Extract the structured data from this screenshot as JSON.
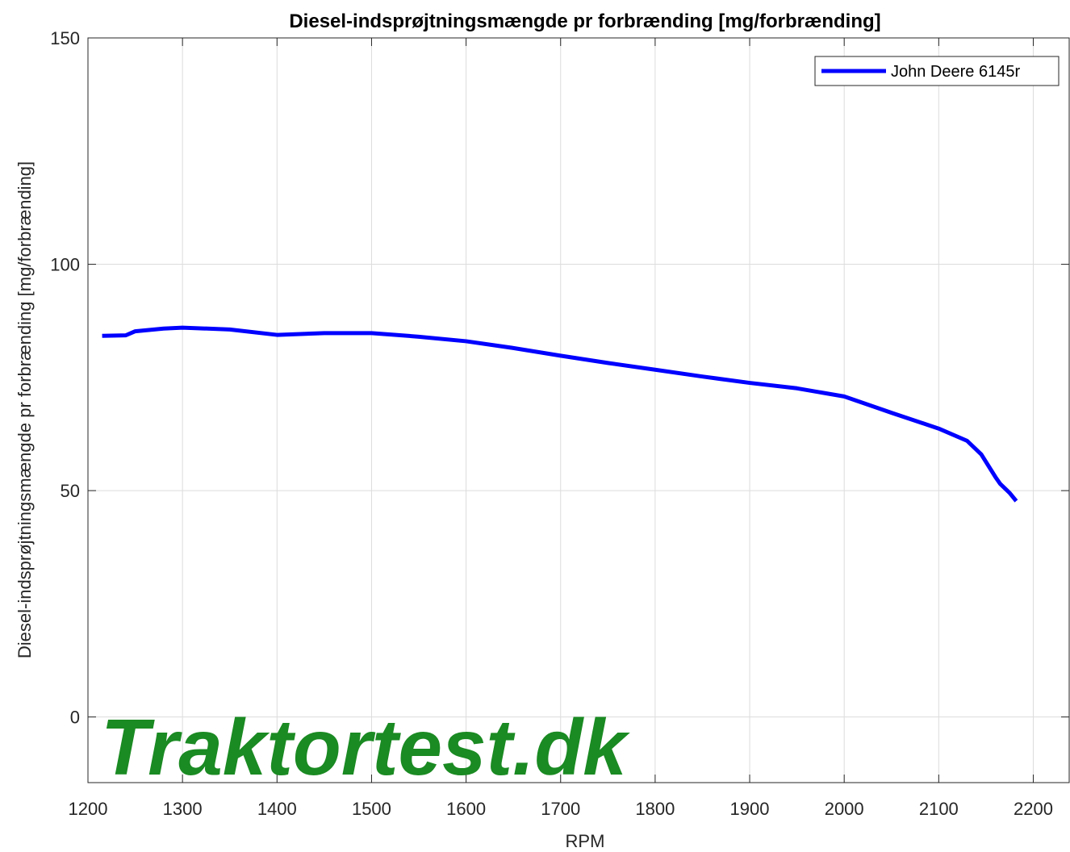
{
  "chart_data": {
    "type": "line",
    "title": "Diesel-indsprøjtningsmængde pr forbrænding [mg/forbrænding]",
    "xlabel": "RPM",
    "ylabel": "Diesel-indsprøjtningsmængde pr forbrænding [mg/forbrænding]",
    "watermark": "Traktortest.dk",
    "x": [
      1215,
      1240,
      1250,
      1280,
      1300,
      1350,
      1400,
      1450,
      1500,
      1550,
      1600,
      1650,
      1700,
      1750,
      1800,
      1850,
      1900,
      1950,
      2000,
      2050,
      2100,
      2130,
      2145,
      2160,
      2165,
      2175,
      2182
    ],
    "series": [
      {
        "name": "John Deere 6145r",
        "color": "#0000ff",
        "values": [
          84.2,
          84.3,
          85.2,
          85.8,
          86.0,
          85.6,
          84.4,
          84.8,
          84.8,
          84.0,
          83.0,
          81.5,
          79.8,
          78.2,
          76.7,
          75.2,
          73.8,
          72.6,
          70.8,
          67.2,
          63.7,
          61.0,
          58.0,
          53.0,
          51.5,
          49.5,
          47.7
        ]
      }
    ],
    "xlim": [
      1200,
      2238
    ],
    "xticks": [
      1200,
      1300,
      1400,
      1500,
      1600,
      1700,
      1800,
      1900,
      2000,
      2100,
      2200
    ],
    "ylim": [
      -14.5,
      150
    ],
    "yticks": [
      0,
      50,
      100,
      150
    ],
    "grid": true,
    "legend": "upper right"
  }
}
